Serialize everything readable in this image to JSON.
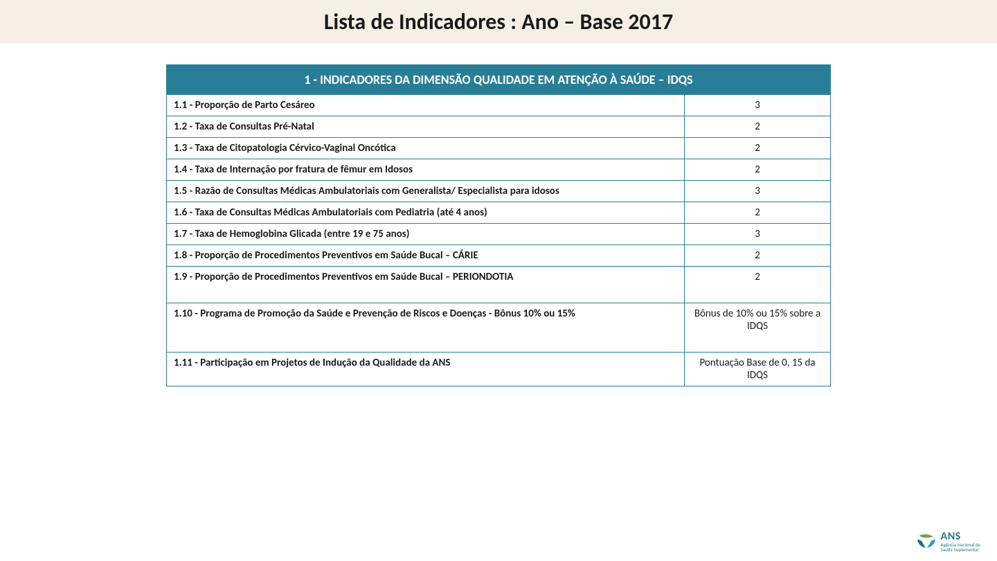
{
  "title": "Lista de Indicadores : Ano – Base 2017",
  "table": {
    "header": "1 - INDICADORES DA DIMENSÃO QUALIDADE EM ATENÇÃO À SAÚDE – IDQS",
    "header_bg": "#297e97",
    "header_color": "#ffffff",
    "border_color": "#297e97",
    "rows": [
      {
        "indicator": "1.1 - Proporção de Parto Cesáreo",
        "value": "3",
        "tall": false
      },
      {
        "indicator": "1.2 - Taxa de Consultas Pré-Natal",
        "value": "2",
        "tall": false
      },
      {
        "indicator": "1.3 - Taxa de Citopatologia Cérvico-Vaginal Oncótica",
        "value": "2",
        "tall": false
      },
      {
        "indicator": "1.4 - Taxa de Internação por fratura de fêmur em Idosos",
        "value": "2",
        "tall": false
      },
      {
        "indicator": "1.5 - Razão de Consultas Médicas Ambulatoriais com Generalista/ Especialista para idosos",
        "value": "3",
        "tall": false
      },
      {
        "indicator": "1.6 - Taxa de Consultas Médicas Ambulatoriais com Pediatria (até 4 anos)",
        "value": "2",
        "tall": false
      },
      {
        "indicator": "1.7 - Taxa de Hemoglobina Glicada (entre 19 e 75 anos)",
        "value": "3",
        "tall": false
      },
      {
        "indicator": "1.8 - Proporção de Procedimentos Preventivos em Saúde Bucal – CÁRIE",
        "value": "2",
        "tall": false
      },
      {
        "indicator": "1.9 - Proporção de Procedimentos Preventivos em Saúde Bucal – PERIONDOTIA",
        "value": "2",
        "tall": true
      },
      {
        "indicator": "1.10 - Programa de Promoção da Saúde e Prevenção de Riscos e Doenças - Bônus 10% ou 15%",
        "value": "Bônus de 10% ou 15% sobre a IDQS",
        "tall": true
      },
      {
        "indicator": "1.11 - Participação em Projetos de Indução da Qualidade da ANS",
        "value": "Pontuação Base de 0, 15 da IDQS",
        "tall": false
      }
    ]
  },
  "logo": {
    "acronym": "ANS",
    "line1": "Agência Nacional de",
    "line2": "Saúde Suplementar",
    "mark_color_top": "#6aa84f",
    "mark_color_left": "#1f6f87",
    "mark_color_right": "#3a9bb5"
  },
  "colors": {
    "title_bar_bg": "#f5efe5",
    "body_bg": "#ffffff",
    "text": "#1a1a1a"
  },
  "typography": {
    "title_fontsize": 32,
    "header_fontsize": 18,
    "cell_fontsize": 15
  }
}
